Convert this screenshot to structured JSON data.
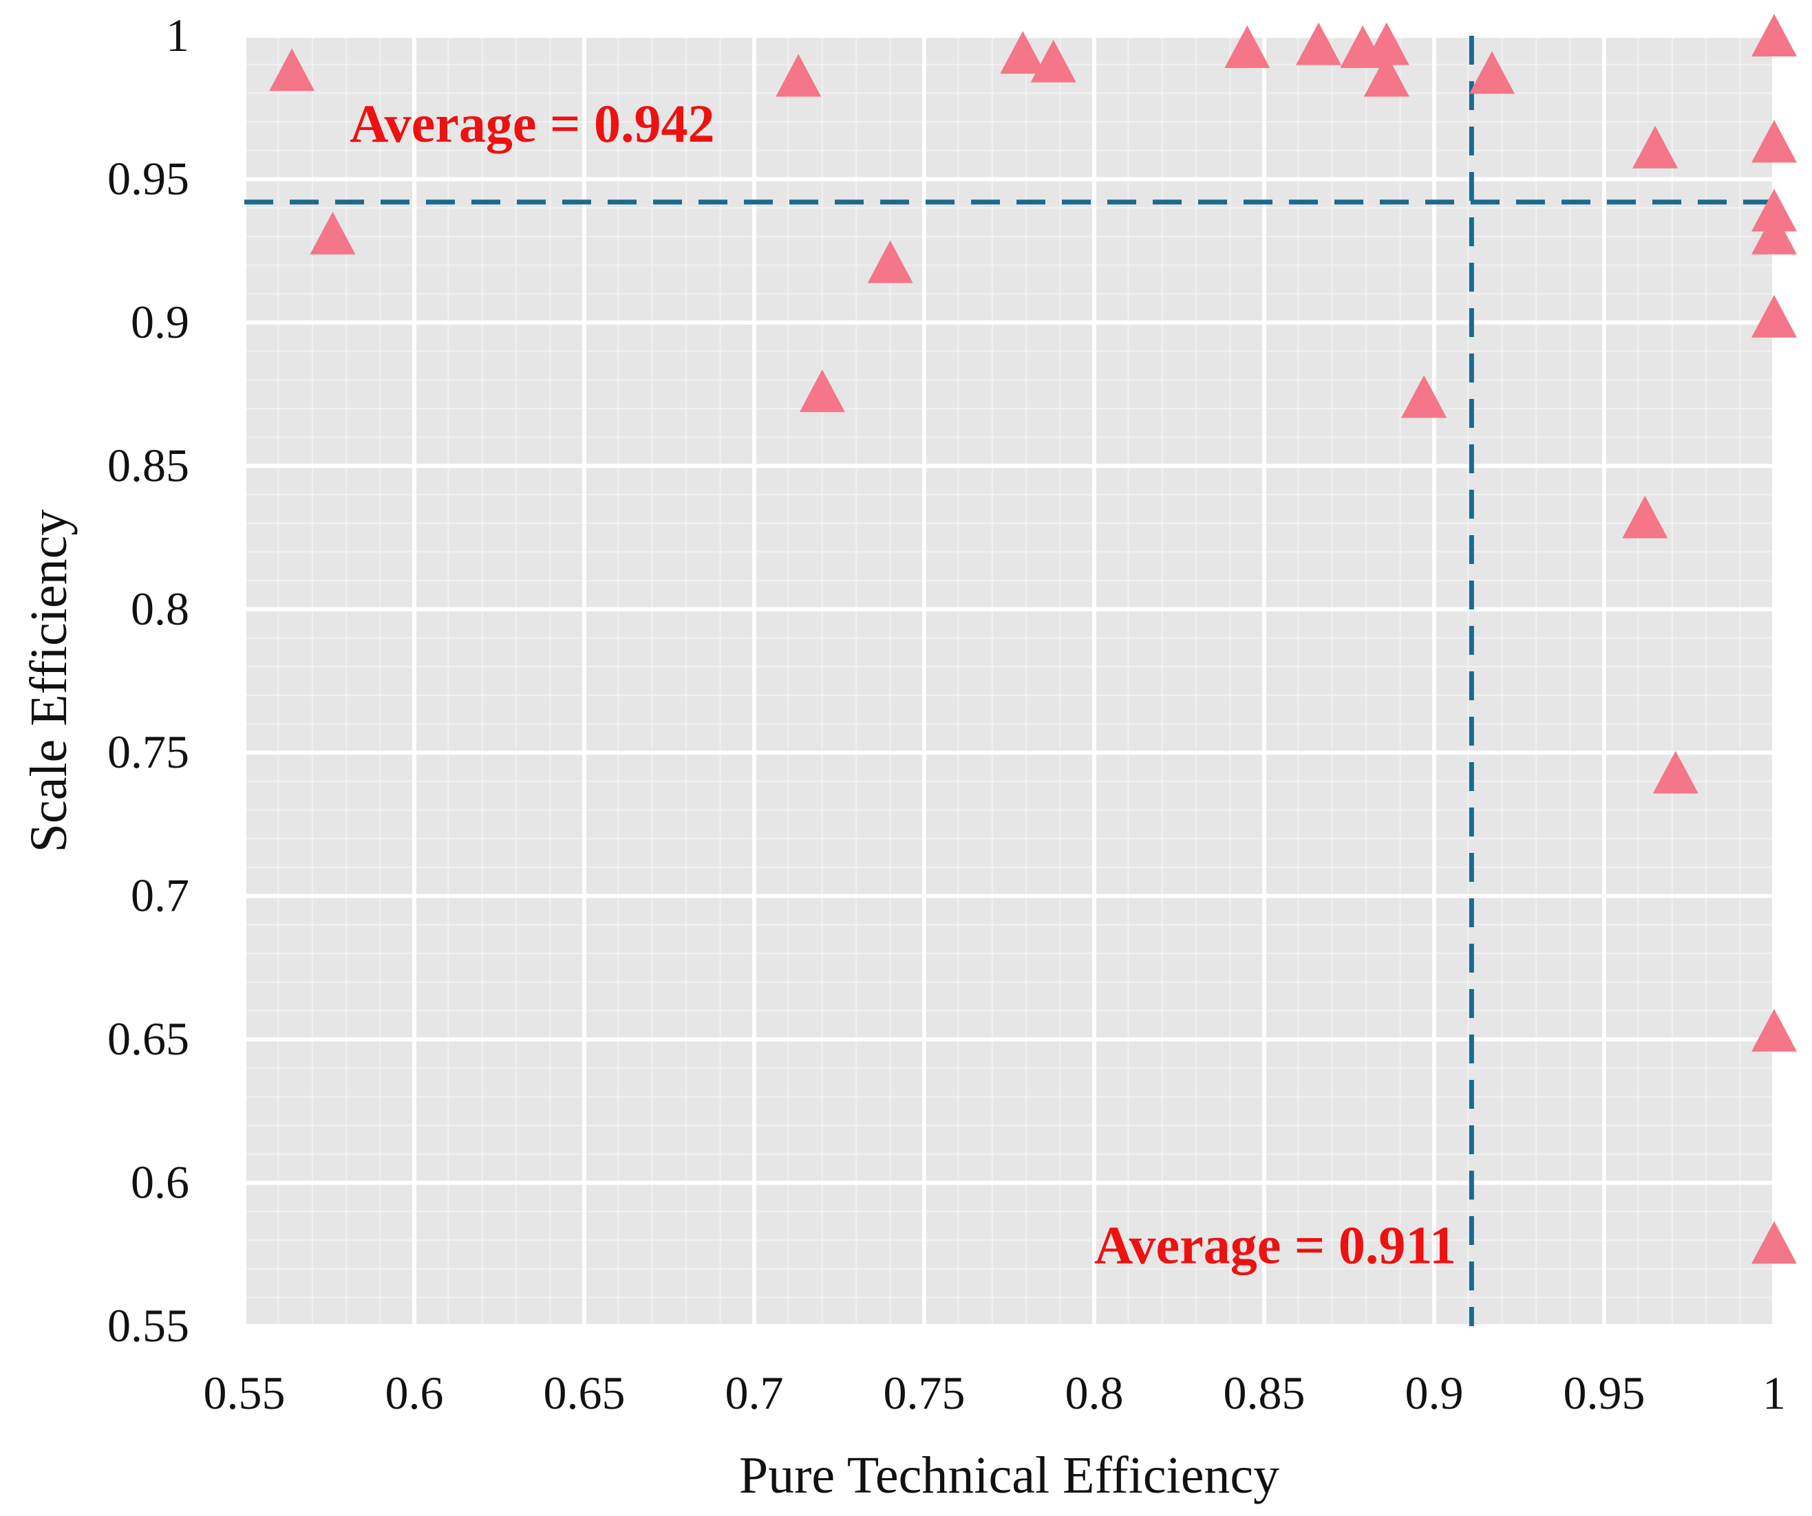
{
  "chart_data": {
    "type": "scatter",
    "title": "",
    "xlabel": "Pure Technical Efficiency",
    "ylabel": "Scale Efficiency",
    "xlim": [
      0.55,
      1.0
    ],
    "ylim": [
      0.55,
      1.0
    ],
    "x_ticks": [
      0.55,
      0.6,
      0.65,
      0.7,
      0.75,
      0.8,
      0.85,
      0.9,
      0.95,
      1.0
    ],
    "x_tick_labels": [
      "0.55",
      "0.6",
      "0.65",
      "0.7",
      "0.75",
      "0.8",
      "0.85",
      "0.9",
      "0.95",
      "1"
    ],
    "y_ticks": [
      0.55,
      0.6,
      0.65,
      0.7,
      0.75,
      0.8,
      0.85,
      0.9,
      0.95,
      1.0
    ],
    "y_tick_labels": [
      "0.55",
      "0.6",
      "0.65",
      "0.7",
      "0.75",
      "0.8",
      "0.85",
      "0.9",
      "0.95",
      "1"
    ],
    "grid": true,
    "marker": "triangle",
    "marker_color": "#f47688",
    "line_color": "#1a6a8f",
    "annotation_color": "#ee1111",
    "points": [
      {
        "x": 0.564,
        "y": 0.987
      },
      {
        "x": 0.576,
        "y": 0.93
      },
      {
        "x": 0.713,
        "y": 0.985
      },
      {
        "x": 0.72,
        "y": 0.875
      },
      {
        "x": 0.74,
        "y": 0.92
      },
      {
        "x": 0.779,
        "y": 0.993
      },
      {
        "x": 0.788,
        "y": 0.99
      },
      {
        "x": 0.845,
        "y": 0.995
      },
      {
        "x": 0.866,
        "y": 0.996
      },
      {
        "x": 0.879,
        "y": 0.995
      },
      {
        "x": 0.886,
        "y": 0.996
      },
      {
        "x": 0.886,
        "y": 0.985
      },
      {
        "x": 0.897,
        "y": 0.873
      },
      {
        "x": 0.917,
        "y": 0.986
      },
      {
        "x": 0.962,
        "y": 0.831
      },
      {
        "x": 0.965,
        "y": 0.96
      },
      {
        "x": 0.971,
        "y": 0.742
      },
      {
        "x": 1.0,
        "y": 0.999
      },
      {
        "x": 1.0,
        "y": 0.962
      },
      {
        "x": 1.0,
        "y": 0.938
      },
      {
        "x": 1.0,
        "y": 0.93
      },
      {
        "x": 1.0,
        "y": 0.901
      },
      {
        "x": 1.0,
        "y": 0.652
      },
      {
        "x": 1.0,
        "y": 0.578
      }
    ],
    "reference_lines": [
      {
        "orientation": "horizontal",
        "value": 0.942,
        "style": "dashed"
      },
      {
        "orientation": "vertical",
        "value": 0.911,
        "style": "dashed"
      }
    ],
    "annotations": [
      {
        "text": "Average = 0.942",
        "x": 0.581,
        "y": 0.963
      },
      {
        "text": "Average = 0.911",
        "x": 0.8,
        "y": 0.572
      }
    ]
  }
}
